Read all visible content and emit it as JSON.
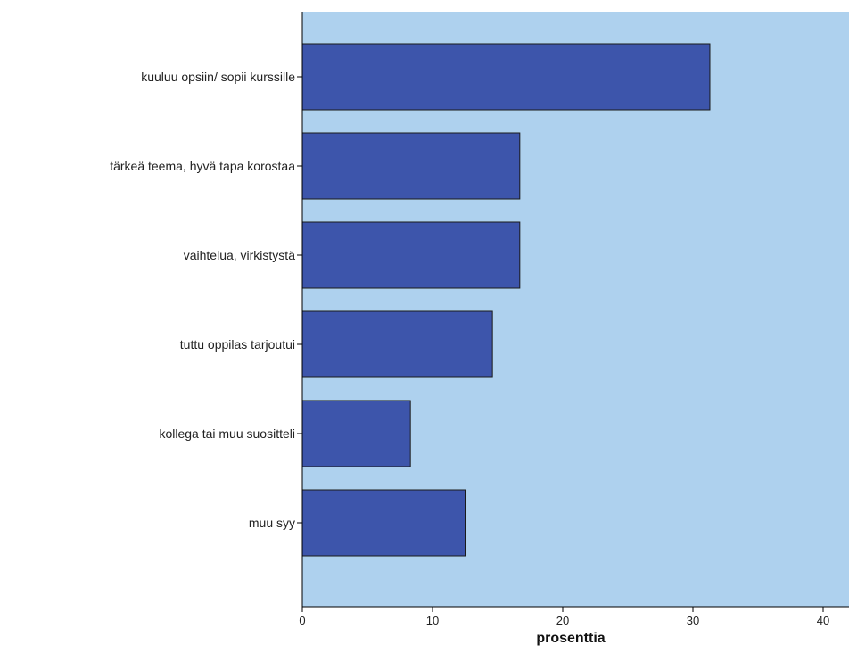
{
  "chart_data": {
    "type": "bar",
    "orientation": "horizontal",
    "categories": [
      "kuuluu opsiin/ sopii kurssille",
      "tärkeä teema, hyvä tapa korostaa",
      "vaihtelua, virkistystä",
      "tuttu oppilas tarjoutui",
      "kollega tai muu suositteli",
      "muu syy"
    ],
    "values": [
      31.3,
      16.7,
      16.7,
      14.6,
      8.3,
      12.5
    ],
    "xlabel": "prosenttia",
    "ylabel": "",
    "xlim": [
      0,
      42
    ],
    "xticks": [
      "0",
      "10",
      "20",
      "30",
      "40"
    ],
    "grid": false,
    "legend": "none"
  },
  "colors": {
    "plot_background": "#aed1ee",
    "bar_fill": "#3d55ab",
    "bar_stroke": "#1a1a1a",
    "axis": "#000000"
  }
}
